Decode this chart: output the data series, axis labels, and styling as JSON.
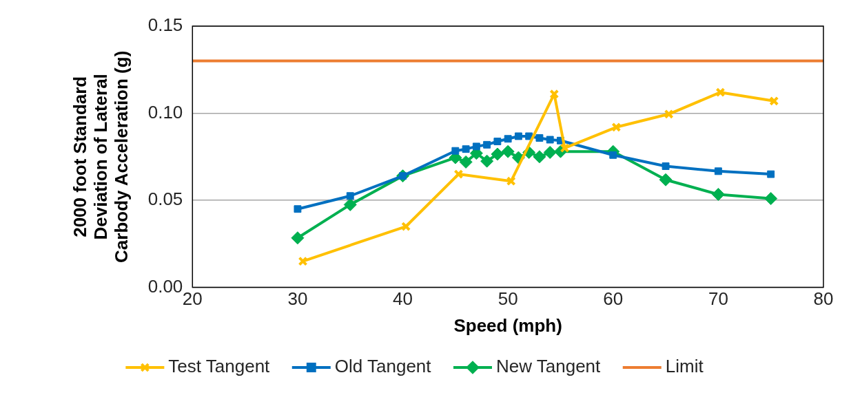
{
  "chart_data": {
    "type": "line",
    "xlabel": "Speed (mph)",
    "ylabel": "2000 foot Standard Deviation of Lateral Carbody Acceleration (g)",
    "xlim": [
      20,
      80
    ],
    "xticks": [
      20,
      30,
      40,
      50,
      60,
      70,
      80
    ],
    "ylim": [
      0,
      0.15
    ],
    "yticks": [
      {
        "value": 0,
        "label": "0.00"
      },
      {
        "value": 0.05,
        "label": "0.05"
      },
      {
        "value": 0.1,
        "label": "0.10"
      },
      {
        "value": 0.15,
        "label": "0.15"
      }
    ],
    "grid": "y",
    "legend": "bottom",
    "series": [
      {
        "name": "Test Tangent",
        "color": "#ffc000",
        "marker": "cross",
        "x": [
          30.5,
          40.3,
          45.3,
          50.3,
          54.4,
          55.4,
          60.3,
          65.3,
          70.2,
          75.3
        ],
        "values": [
          0.015,
          0.035,
          0.065,
          0.061,
          0.111,
          0.08,
          0.092,
          0.0995,
          0.112,
          0.107
        ]
      },
      {
        "name": "Old Tangent",
        "color": "#0070c0",
        "marker": "square",
        "x": [
          30,
          35,
          40,
          45,
          46,
          47,
          48,
          49,
          50,
          51,
          52,
          53,
          54,
          55,
          60,
          65,
          70,
          75
        ],
        "values": [
          0.045,
          0.0525,
          0.064,
          0.0784,
          0.0794,
          0.0809,
          0.0819,
          0.0838,
          0.0853,
          0.0868,
          0.0868,
          0.0858,
          0.0848,
          0.0843,
          0.076,
          0.0696,
          0.0667,
          0.065
        ]
      },
      {
        "name": "New Tangent",
        "color": "#00b050",
        "marker": "diamond",
        "x": [
          30,
          35,
          40,
          45,
          46,
          47,
          48,
          49,
          50,
          51,
          52,
          53,
          54,
          55,
          60,
          65,
          70,
          75
        ],
        "values": [
          0.0284,
          0.0475,
          0.064,
          0.0745,
          0.072,
          0.077,
          0.0725,
          0.0765,
          0.078,
          0.0745,
          0.0775,
          0.075,
          0.0775,
          0.078,
          0.078,
          0.0618,
          0.0534,
          0.051
        ]
      },
      {
        "name": "Limit",
        "color": "#ed7d31",
        "marker": "none",
        "x": [
          20,
          80
        ],
        "values": [
          0.13,
          0.13
        ]
      }
    ]
  }
}
